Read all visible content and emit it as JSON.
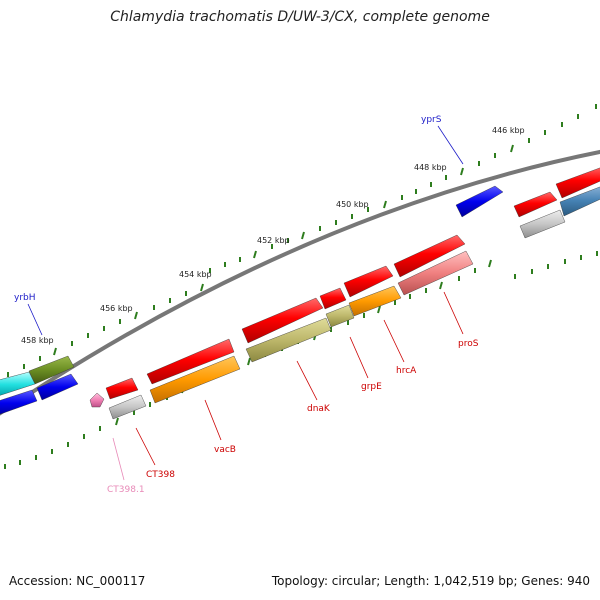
{
  "title": "Chlamydia trachomatis D/UW-3/CX, complete genome",
  "footer": {
    "accession": "Accession: NC_000117",
    "summary": "Topology: circular; Length: 1,042,519 bp; Genes: 940"
  },
  "colors": {
    "backbone": "#777777",
    "ticks": "#2e7d1e",
    "forward_label": "#1c1cc8",
    "reverse_label": "#cc0000",
    "pink_label": "#e88ab8"
  },
  "map": {
    "tick_labels": [
      "446 kbp",
      "448 kbp",
      "450 kbp",
      "452 kbp",
      "454 kbp",
      "456 kbp",
      "458 kbp"
    ],
    "gene_labels": [
      "yprS",
      "yrbH",
      "proS",
      "hrcA",
      "grpE",
      "dnaK",
      "vacB",
      "CT398",
      "CT398.1"
    ]
  }
}
